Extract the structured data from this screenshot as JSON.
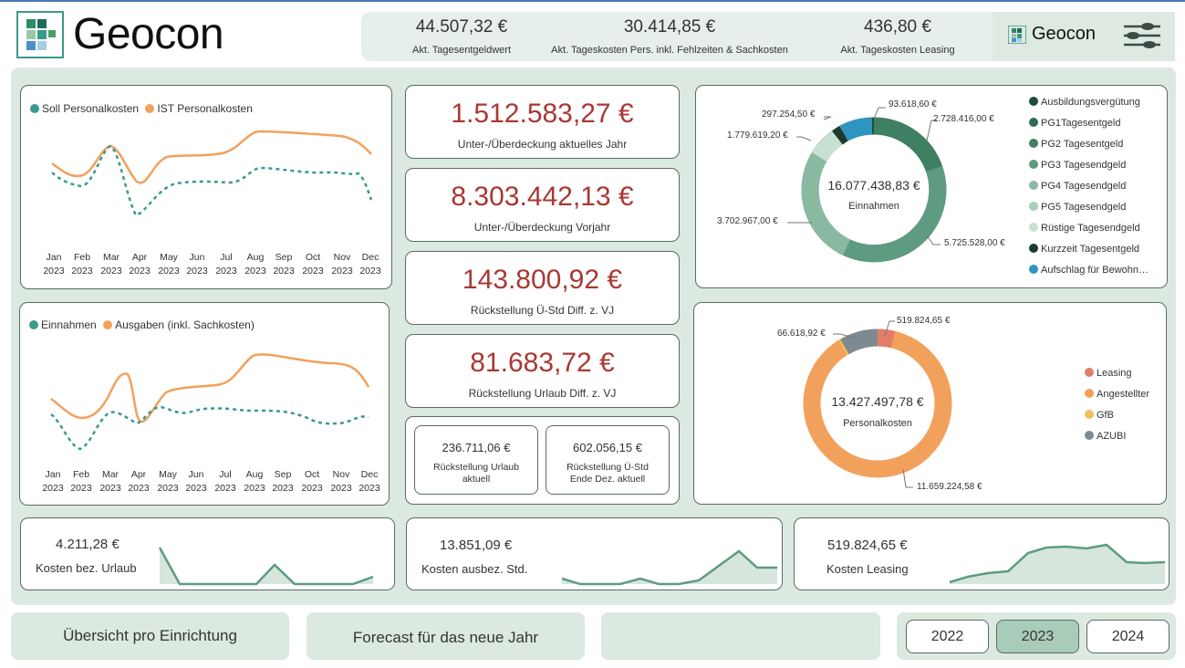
{
  "logo": {
    "text": "Geocon"
  },
  "kpis": [
    {
      "value": "44.507,32 €",
      "label": "Akt. Tagesentgeldwert"
    },
    {
      "value": "30.414,85 €",
      "label": "Akt. Tageskosten Pers. inkl. Fehlzeiten & Sachkosten"
    },
    {
      "value": "436,80 €",
      "label": "Akt. Tageskosten Leasing"
    }
  ],
  "brand": {
    "text": "Geocon",
    "filter_icon": "filter-sliders-icon"
  },
  "colors": {
    "accent": "#3a9a8c",
    "orange": "#f2a15c",
    "red_value": "#a93834",
    "panel": "#dbe9e0"
  },
  "months": [
    "Jan",
    "Feb",
    "Mar",
    "Apr",
    "May",
    "Jun",
    "Jul",
    "Aug",
    "Sep",
    "Oct",
    "Nov",
    "Dec"
  ],
  "year_label": "2023",
  "chart1": {
    "legend": [
      "Soll Personalkosten",
      "IST Personalkosten"
    ]
  },
  "chart2": {
    "legend": [
      "Einnahmen",
      "Ausgaben (inkl. Sachkosten)"
    ]
  },
  "big_cards": [
    {
      "value": "1.512.583,27 €",
      "label": "Unter-/Überdeckung aktuelles Jahr"
    },
    {
      "value": "8.303.442,13 €",
      "label": "Unter-/Überdeckung Vorjahr"
    },
    {
      "value": "143.800,92 €",
      "label": "Rückstellung Ü-Std Diff. z. VJ"
    },
    {
      "value": "81.683,72 €",
      "label": "Rückstellung Urlaub Diff. z. VJ"
    }
  ],
  "small_cards": [
    {
      "value": "236.711,06 €",
      "label1": "Rückstellung Urlaub",
      "label2": "aktuell"
    },
    {
      "value": "602.056,15 €",
      "label1": "Rückstellung Ü-Std",
      "label2": "Ende Dez. aktuell"
    }
  ],
  "donut1": {
    "center_value": "16.077.438,83 €",
    "center_label": "Einnahmen",
    "labels": [
      "93.618,60 €",
      "2.728.416,00 €",
      "297.254,50 €",
      "1.779.619,20 €",
      "3.702.967,00 €",
      "5.725.528,00 €"
    ],
    "legend": [
      {
        "label": "Ausbildungsvergütung",
        "color": "#1f4d3c"
      },
      {
        "label": "PG1Tagesentgeld",
        "color": "#2f6b52"
      },
      {
        "label": "PG2 Tagesentgeld",
        "color": "#3f7f62"
      },
      {
        "label": "PG3 Tagesendgeld",
        "color": "#5e9b80"
      },
      {
        "label": "PG4 Tagesendgeld",
        "color": "#8ab9a1"
      },
      {
        "label": "PG5 Tagesendgeld",
        "color": "#a8cdb8"
      },
      {
        "label": "Rüstige Tagesendgeld",
        "color": "#c8e0d2"
      },
      {
        "label": "Kurzzeit Tagesentgeld",
        "color": "#1d3a2e"
      },
      {
        "label": "Aufschlag für Bewohn…",
        "color": "#2e95c0"
      }
    ]
  },
  "donut2": {
    "center_value": "13.427.497,78 €",
    "center_label": "Personalkosten",
    "labels": [
      "519.824,65 €",
      "66.618,92 €",
      "11.659.224,58 €"
    ],
    "legend": [
      {
        "label": "Leasing",
        "color": "#e27d6a"
      },
      {
        "label": "Angestellter",
        "color": "#f2a15c"
      },
      {
        "label": "GfB",
        "color": "#f0c05a"
      },
      {
        "label": "AZUBI",
        "color": "#7d8a91"
      }
    ]
  },
  "sparks": [
    {
      "value": "4.211,28 €",
      "label": "Kosten bez. Urlaub"
    },
    {
      "value": "13.851,09 €",
      "label": "Kosten ausbez. Std."
    },
    {
      "value": "519.824,65 €",
      "label": "Kosten Leasing"
    }
  ],
  "nav": [
    {
      "label": "Übersicht pro Einrichtung"
    },
    {
      "label": "Forecast für das neue Jahr"
    },
    {
      "label": ""
    }
  ],
  "years": [
    {
      "label": "2022",
      "selected": false
    },
    {
      "label": "2023",
      "selected": true
    },
    {
      "label": "2024",
      "selected": false
    }
  ]
}
